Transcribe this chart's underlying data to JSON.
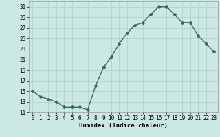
{
  "x": [
    0,
    1,
    2,
    3,
    4,
    5,
    6,
    7,
    8,
    9,
    10,
    11,
    12,
    13,
    14,
    15,
    16,
    17,
    18,
    19,
    20,
    21,
    22,
    23
  ],
  "y": [
    15,
    14,
    13.5,
    13,
    12,
    12,
    12,
    11.5,
    16,
    19.5,
    21.5,
    24,
    26,
    27.5,
    28,
    29.5,
    31,
    31,
    29.5,
    28,
    28,
    25.5,
    24,
    22.5
  ],
  "line_color": "#2e6b5e",
  "marker": "D",
  "marker_size": 2,
  "bg_color": "#cce8e4",
  "grid_color": "#b0ccc8",
  "xlabel": "Humidex (Indice chaleur)",
  "xlim": [
    -0.5,
    23.5
  ],
  "ylim": [
    11,
    32
  ],
  "yticks": [
    11,
    13,
    15,
    17,
    19,
    21,
    23,
    25,
    27,
    29,
    31
  ],
  "xtick_labels": [
    "0",
    "1",
    "2",
    "3",
    "4",
    "5",
    "6",
    "7",
    "8",
    "9",
    "10",
    "11",
    "12",
    "13",
    "14",
    "15",
    "16",
    "17",
    "18",
    "19",
    "20",
    "21",
    "22",
    "23"
  ],
  "tick_fontsize": 5.5,
  "xlabel_fontsize": 6.5,
  "line_width": 1.0
}
